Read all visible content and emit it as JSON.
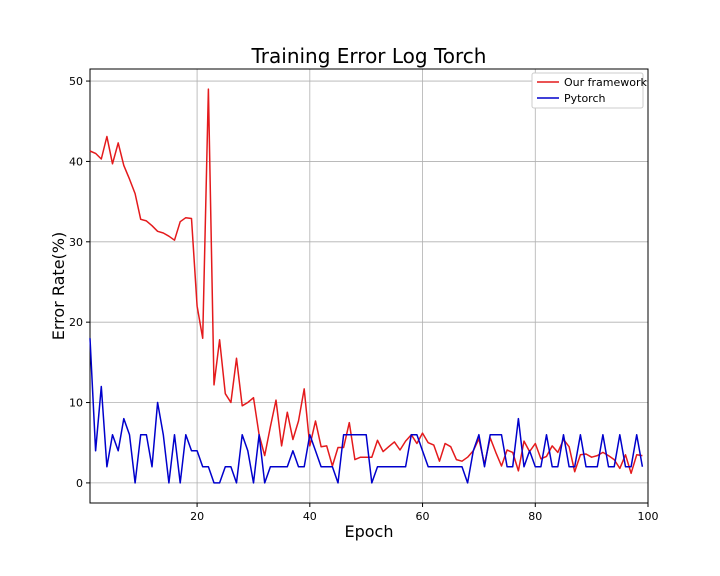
{
  "chart_data": {
    "type": "line",
    "title": "Training Error Log Torch",
    "xlabel": "Epoch",
    "ylabel": "Error Rate(%)",
    "xlim": [
      1,
      100
    ],
    "ylim": [
      -2.5,
      51.5
    ],
    "xticks": [
      20,
      40,
      60,
      80,
      100
    ],
    "yticks": [
      0,
      10,
      20,
      30,
      40,
      50
    ],
    "grid": true,
    "legend_position": "top-right",
    "x": [
      1,
      2,
      3,
      4,
      5,
      6,
      7,
      8,
      9,
      10,
      11,
      12,
      13,
      14,
      15,
      16,
      17,
      18,
      19,
      20,
      21,
      22,
      23,
      24,
      25,
      26,
      27,
      28,
      29,
      30,
      31,
      32,
      33,
      34,
      35,
      36,
      37,
      38,
      39,
      40,
      41,
      42,
      43,
      44,
      45,
      46,
      47,
      48,
      49,
      50,
      51,
      52,
      53,
      54,
      55,
      56,
      57,
      58,
      59,
      60,
      61,
      62,
      63,
      64,
      65,
      66,
      67,
      68,
      69,
      70,
      71,
      72,
      73,
      74,
      75,
      76,
      77,
      78,
      79,
      80,
      81,
      82,
      83,
      84,
      85,
      86,
      87,
      88,
      89,
      90,
      91,
      92,
      93,
      94,
      95,
      96,
      97,
      98,
      99
    ],
    "series": [
      {
        "name": "Our framework",
        "color": "#e41a1c",
        "values": [
          41.3,
          41.0,
          40.3,
          43.1,
          39.7,
          42.3,
          39.5,
          37.8,
          36.0,
          32.8,
          32.6,
          32.0,
          31.3,
          31.1,
          30.7,
          30.2,
          32.5,
          33.0,
          32.9,
          22.0,
          18.0,
          49.0,
          12.2,
          17.8,
          11.1,
          10.0,
          15.5,
          9.6,
          10.0,
          10.6,
          6.0,
          3.4,
          7.0,
          10.3,
          4.6,
          8.8,
          5.4,
          7.7,
          11.7,
          4.6,
          7.7,
          4.5,
          4.6,
          2.1,
          4.4,
          4.4,
          7.5,
          2.9,
          3.2,
          3.2,
          3.2,
          5.3,
          3.9,
          4.5,
          5.1,
          4.1,
          5.2,
          6.0,
          4.9,
          6.2,
          5.0,
          4.7,
          2.7,
          4.9,
          4.5,
          2.9,
          2.7,
          3.2,
          4.0,
          5.5,
          2.3,
          5.6,
          3.8,
          2.1,
          4.1,
          3.8,
          1.5,
          5.2,
          3.9,
          4.9,
          3.0,
          3.3,
          4.6,
          3.8,
          5.4,
          4.5,
          1.4,
          3.5,
          3.6,
          3.2,
          3.4,
          3.8,
          3.4,
          2.9,
          1.8,
          3.5,
          1.2,
          3.5,
          3.4
        ]
      },
      {
        "name": "Pytorch",
        "color": "#0000cc",
        "values": [
          18.0,
          4.0,
          12.0,
          2.0,
          6.0,
          4.0,
          8.0,
          6.0,
          0.0,
          6.0,
          6.0,
          2.0,
          10.0,
          6.0,
          0.0,
          6.0,
          0.0,
          6.0,
          4.0,
          4.0,
          2.0,
          2.0,
          0.0,
          0.0,
          2.0,
          2.0,
          0.0,
          6.0,
          4.0,
          0.0,
          6.0,
          0.0,
          2.0,
          2.0,
          2.0,
          2.0,
          4.0,
          2.0,
          2.0,
          6.0,
          4.0,
          2.0,
          2.0,
          2.0,
          0.0,
          6.0,
          6.0,
          6.0,
          6.0,
          6.0,
          0.0,
          2.0,
          2.0,
          2.0,
          2.0,
          2.0,
          2.0,
          6.0,
          6.0,
          4.0,
          2.0,
          2.0,
          2.0,
          2.0,
          2.0,
          2.0,
          2.0,
          0.0,
          4.0,
          6.0,
          2.0,
          6.0,
          6.0,
          6.0,
          2.0,
          2.0,
          8.0,
          2.0,
          4.0,
          2.0,
          2.0,
          6.0,
          2.0,
          2.0,
          6.0,
          2.0,
          2.0,
          6.0,
          2.0,
          2.0,
          2.0,
          6.0,
          2.0,
          2.0,
          6.0,
          2.0,
          2.0,
          6.0,
          2.0
        ]
      }
    ]
  }
}
